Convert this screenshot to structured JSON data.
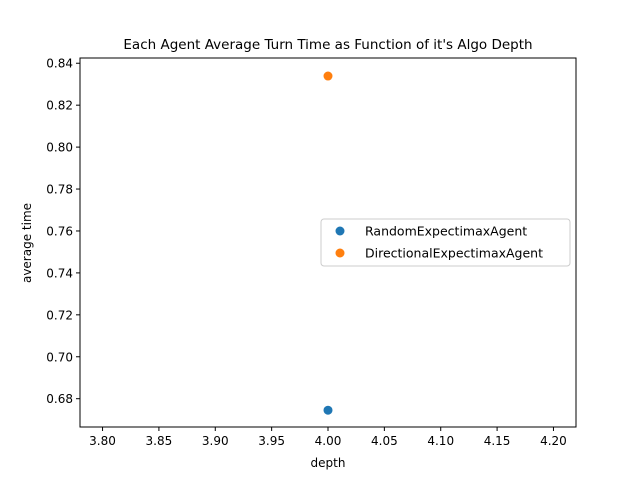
{
  "chart_data": {
    "type": "scatter",
    "title": "Each Agent Average Turn Time as Function of it's Algo Depth",
    "xlabel": "depth",
    "ylabel": "average time",
    "xlim": [
      3.78,
      4.22
    ],
    "ylim": [
      0.6665,
      0.8425
    ],
    "x_ticks": [
      "3.80",
      "3.85",
      "3.90",
      "3.95",
      "4.00",
      "4.05",
      "4.10",
      "4.15",
      "4.20"
    ],
    "y_ticks": [
      "0.68",
      "0.70",
      "0.72",
      "0.74",
      "0.76",
      "0.78",
      "0.80",
      "0.82",
      "0.84"
    ],
    "grid": false,
    "legend_position": "center-right",
    "series": [
      {
        "name": "RandomExpectimaxAgent",
        "color": "#1f77b4",
        "points": [
          {
            "x": 4.0,
            "y": 0.6745
          }
        ]
      },
      {
        "name": "DirectionalExpectimaxAgent",
        "color": "#ff7f0e",
        "points": [
          {
            "x": 4.0,
            "y": 0.8339
          }
        ]
      }
    ]
  }
}
